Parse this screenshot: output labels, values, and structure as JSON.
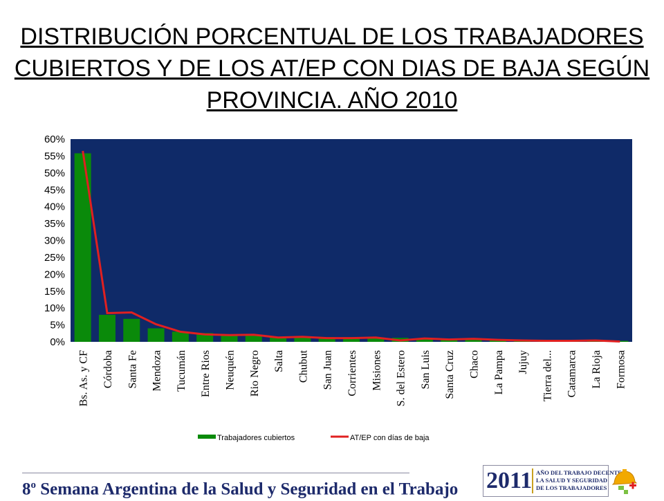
{
  "title": "DISTRIBUCIÓN PORCENTUAL DE LOS TRABAJADORES CUBIERTOS Y DE LOS AT/EP CON DIAS DE BAJA SEGÚN PROVINCIA. AÑO 2010",
  "footer": {
    "banner_num": "8",
    "banner_sup": "o",
    "banner_text": " Semana Argentina de la Salud y Seguridad en el Trabajo",
    "logo_year": "2011",
    "logo_line1": "AÑO DEL TRABAJO DECENTE,",
    "logo_line2": "LA SALUD Y SEGURIDAD",
    "logo_line3": "DE LOS TRABAJADORES"
  },
  "colors": {
    "plot_bg": "#0f2a68",
    "bar": "#0a8a0a",
    "line": "#e02020"
  },
  "chart_data": {
    "type": "bar",
    "title": "",
    "xlabel": "",
    "ylabel": "",
    "ylim": [
      0,
      60
    ],
    "y_ticks": [
      "0%",
      "5%",
      "10%",
      "15%",
      "20%",
      "25%",
      "30%",
      "35%",
      "40%",
      "45%",
      "50%",
      "55%",
      "60%"
    ],
    "grid": false,
    "legend_position": "bottom",
    "categories": [
      "Bs. As. y CF",
      "Córdoba",
      "Santa Fe",
      "Mendoza",
      "Tucumán",
      "Entre Rios",
      "Neuquén",
      "Rio Negro",
      "Salta",
      "Chubut",
      "San Juan",
      "Corrientes",
      "Misiones",
      "S. del Estero",
      "San Luis",
      "Santa Cruz",
      "Chaco",
      "La Pampa",
      "Jujuy",
      "Tierra del...",
      "Catamarca",
      "La Rioja",
      "Formosa"
    ],
    "series": [
      {
        "name": "Trabajadores cubiertos",
        "type": "bar",
        "values": [
          55.8,
          8.0,
          6.8,
          4.0,
          3.0,
          2.6,
          2.0,
          2.0,
          1.5,
          1.5,
          1.4,
          1.4,
          1.3,
          1.2,
          1.0,
          0.9,
          0.9,
          0.7,
          0.6,
          0.5,
          0.5,
          0.4,
          0.3
        ]
      },
      {
        "name": "AT/EP con días de baja",
        "type": "line",
        "values": [
          56.5,
          8.5,
          8.7,
          5.2,
          3.0,
          2.2,
          2.0,
          2.1,
          1.3,
          1.5,
          1.1,
          1.1,
          1.3,
          0.4,
          1.0,
          0.7,
          0.9,
          0.6,
          0.4,
          0.3,
          0.3,
          0.4,
          0.1
        ]
      }
    ]
  }
}
